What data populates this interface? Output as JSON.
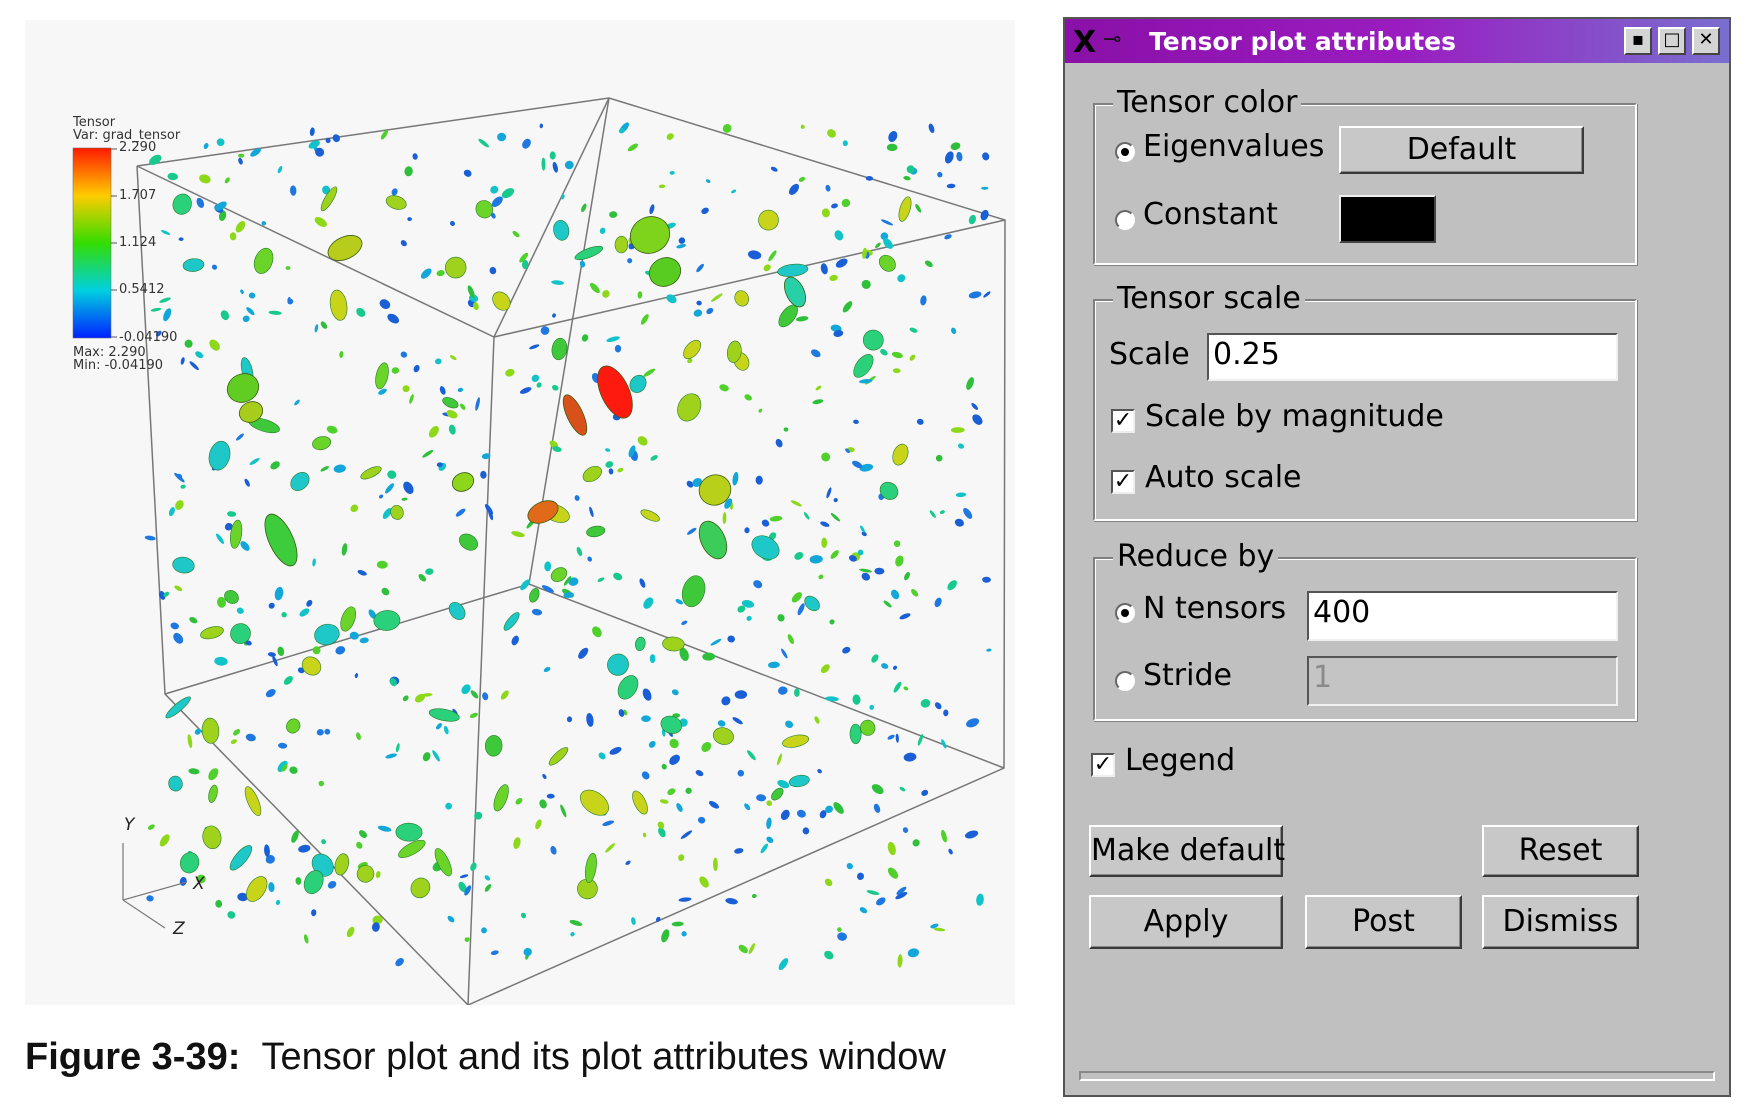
{
  "legend": {
    "title": "Tensor",
    "var": "Var: grad_tensor",
    "ticks": [
      "2.290",
      "1.707",
      "1.124",
      "0.5412",
      "-0.04190"
    ],
    "max": "Max: 2.290",
    "min": "Min: -0.04190",
    "colors": [
      "#ff1a00",
      "#ffcc00",
      "#33dd00",
      "#00d0e0",
      "#0022ff"
    ]
  },
  "axes": {
    "y": "Y",
    "x": "X",
    "z": "Z"
  },
  "caption": {
    "label": "Figure 3-39:",
    "text": "Tensor plot and its plot attributes window"
  },
  "dialog": {
    "title": "Tensor plot attributes",
    "window_buttons": [
      "▪",
      "□",
      "✕"
    ],
    "tensor_color": {
      "group_title": "Tensor color",
      "eigenvalues_label": "Eigenvalues",
      "eigenvalues_selected": true,
      "default_button": "Default",
      "constant_label": "Constant",
      "constant_color": "#000000"
    },
    "tensor_scale": {
      "group_title": "Tensor scale",
      "scale_label": "Scale",
      "scale_value": "0.25",
      "scale_by_magnitude_label": "Scale by magnitude",
      "scale_by_magnitude_checked": true,
      "auto_scale_label": "Auto scale",
      "auto_scale_checked": true
    },
    "reduce_by": {
      "group_title": "Reduce by",
      "n_tensors_label": "N tensors",
      "n_tensors_selected": true,
      "n_tensors_value": "400",
      "stride_label": "Stride",
      "stride_value": "1"
    },
    "legend_label": "Legend",
    "legend_checked": true,
    "buttons": {
      "make_default": "Make default",
      "reset": "Reset",
      "apply": "Apply",
      "post": "Post",
      "dismiss": "Dismiss"
    },
    "check_mark": "✓"
  }
}
